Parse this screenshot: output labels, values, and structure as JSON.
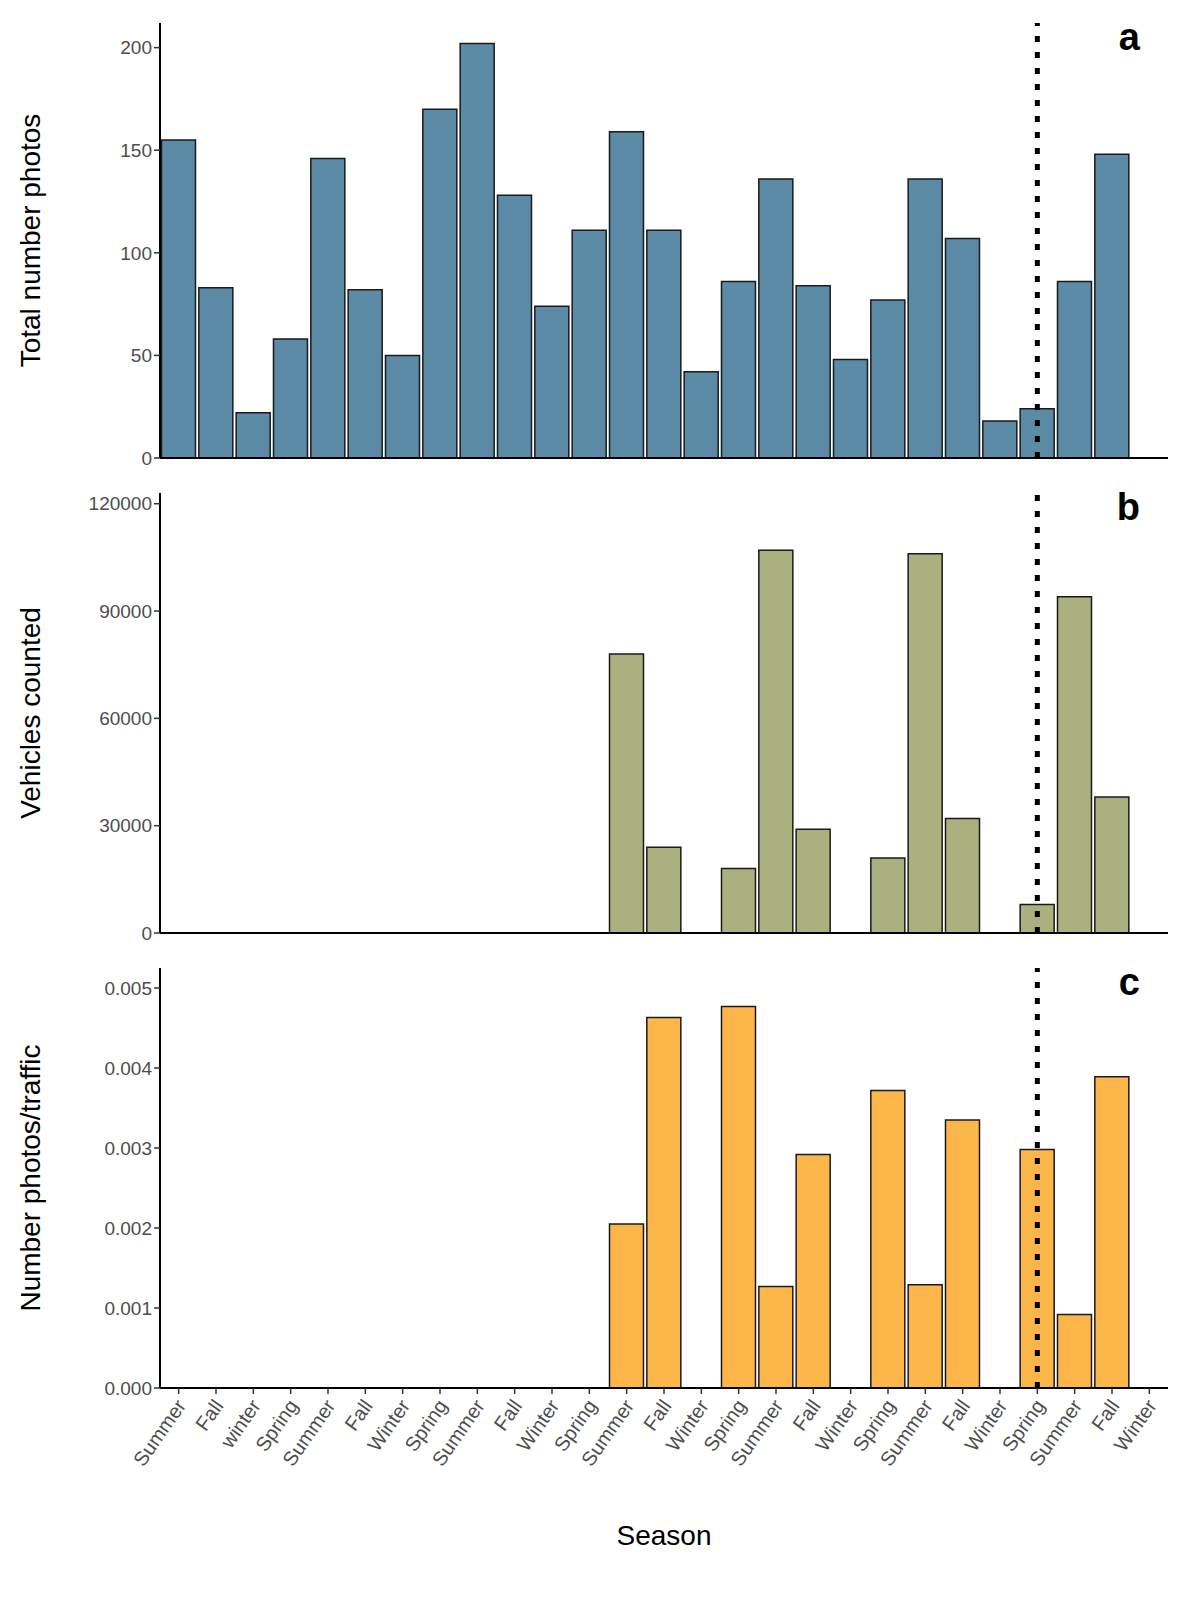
{
  "chart_data": [
    {
      "type": "bar",
      "panel_label": "a",
      "y_label": "Total number photos",
      "categories": [
        "Summer",
        "Fall",
        "winter",
        "Spring",
        "Summer",
        "Fall",
        "Winter",
        "Spring",
        "Summer",
        "Fall",
        "Winter",
        "Spring",
        "Summer",
        "Fall",
        "Winter",
        "Spring",
        "Summer",
        "Fall",
        "Winter",
        "Spring",
        "Summer",
        "Fall",
        "Winter",
        "Spring",
        "Summer",
        "Fall",
        "Winter"
      ],
      "values": [
        155,
        83,
        22,
        58,
        146,
        82,
        50,
        170,
        202,
        128,
        74,
        111,
        159,
        111,
        42,
        86,
        136,
        84,
        48,
        77,
        136,
        107,
        18,
        24,
        86,
        148,
        null
      ],
      "color": "#5b8ba6",
      "ylim": [
        0,
        212
      ],
      "yticks": [
        0,
        50,
        100,
        150,
        200
      ],
      "tick_labels": "y",
      "reference_line": 23
    },
    {
      "type": "bar",
      "panel_label": "b",
      "y_label": "Vehicles counted",
      "categories": [
        "Summer",
        "Fall",
        "winter",
        "Spring",
        "Summer",
        "Fall",
        "Winter",
        "Spring",
        "Summer",
        "Fall",
        "Winter",
        "Spring",
        "Summer",
        "Fall",
        "Winter",
        "Spring",
        "Summer",
        "Fall",
        "Winter",
        "Spring",
        "Summer",
        "Fall",
        "Winter",
        "Spring",
        "Summer",
        "Fall",
        "Winter"
      ],
      "values": [
        null,
        null,
        null,
        null,
        null,
        null,
        null,
        null,
        null,
        null,
        null,
        null,
        78000,
        24000,
        null,
        18000,
        107000,
        29000,
        null,
        21000,
        106000,
        32000,
        null,
        8000,
        94000,
        38000,
        null
      ],
      "color": "#aab07e",
      "ylim": [
        0,
        123000
      ],
      "yticks": [
        0,
        30000,
        60000,
        90000,
        120000
      ],
      "tick_labels": "y",
      "reference_line": 23
    },
    {
      "type": "bar",
      "panel_label": "c",
      "y_label": "Number photos/traffic",
      "x_label": "Season",
      "categories": [
        "Summer",
        "Fall",
        "winter",
        "Spring",
        "Summer",
        "Fall",
        "Winter",
        "Spring",
        "Summer",
        "Fall",
        "Winter",
        "Spring",
        "Summer",
        "Fall",
        "Winter",
        "Spring",
        "Summer",
        "Fall",
        "Winter",
        "Spring",
        "Summer",
        "Fall",
        "Winter",
        "Spring",
        "Summer",
        "Fall",
        "Winter"
      ],
      "values": [
        null,
        null,
        null,
        null,
        null,
        null,
        null,
        null,
        null,
        null,
        null,
        null,
        0.00205,
        0.00463,
        null,
        0.00477,
        0.00127,
        0.00292,
        null,
        0.00372,
        0.00129,
        0.00335,
        null,
        0.00298,
        0.00092,
        0.00389,
        null
      ],
      "color": "#fdb64a",
      "ylim": [
        0,
        0.00525
      ],
      "yticks": [
        {
          "value": 0,
          "label": "0.000"
        },
        {
          "value": 0.001,
          "label": "0.001"
        },
        {
          "value": 0.002,
          "label": "0.002"
        },
        {
          "value": 0.003,
          "label": "0.003"
        },
        {
          "value": 0.004,
          "label": "0.004"
        },
        {
          "value": 0.005,
          "label": "0.005"
        }
      ],
      "reference_line": 23
    }
  ]
}
